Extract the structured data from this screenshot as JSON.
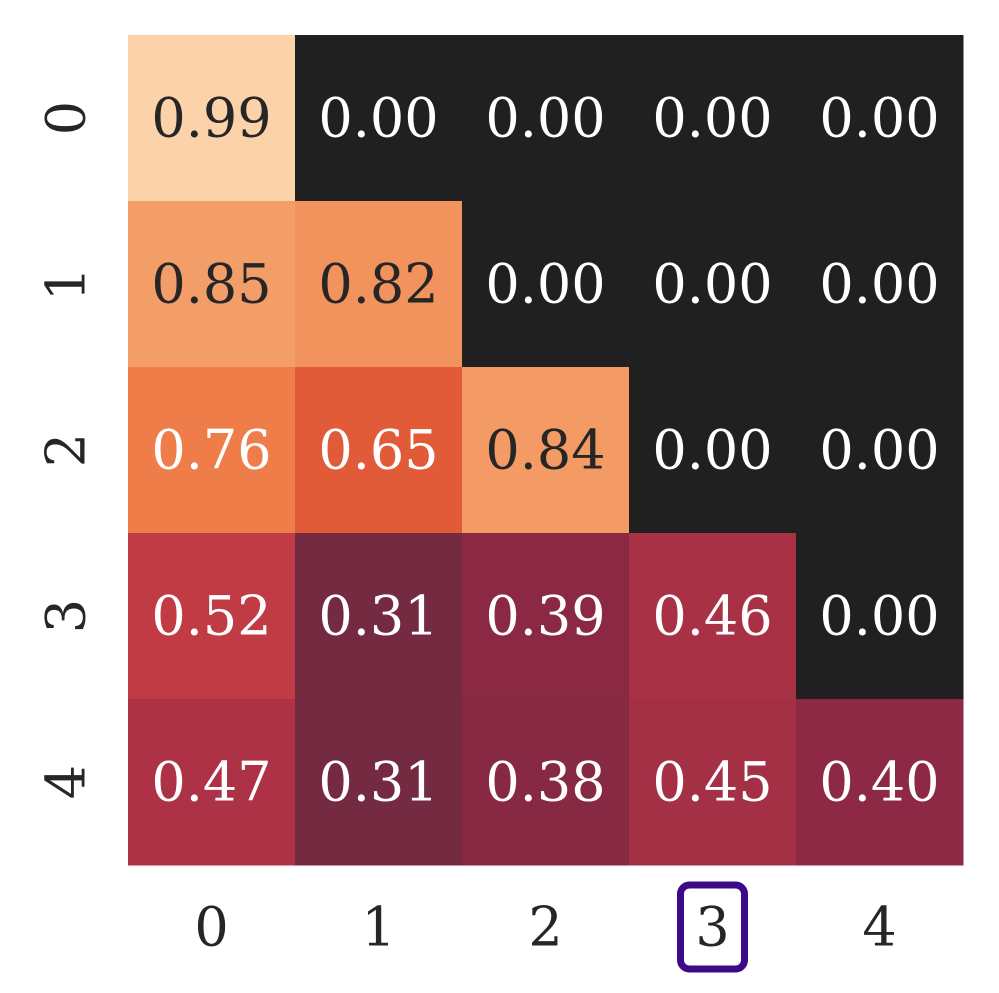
{
  "chart_data": {
    "type": "heatmap",
    "title": "",
    "xlabel": "",
    "ylabel": "",
    "x_ticks": [
      "0",
      "1",
      "2",
      "3",
      "4"
    ],
    "y_ticks": [
      "0",
      "1",
      "2",
      "3",
      "4"
    ],
    "values": [
      [
        0.99,
        0.0,
        0.0,
        0.0,
        0.0
      ],
      [
        0.85,
        0.82,
        0.0,
        0.0,
        0.0
      ],
      [
        0.76,
        0.65,
        0.84,
        0.0,
        0.0
      ],
      [
        0.52,
        0.31,
        0.39,
        0.46,
        0.0
      ],
      [
        0.47,
        0.31,
        0.38,
        0.45,
        0.4
      ]
    ],
    "value_format": "0.00",
    "colormap": "rocket",
    "zero_color": "#202020",
    "colorbar": false,
    "highlighted_x_tick": "3",
    "highlight_color": "#3d0a87"
  }
}
